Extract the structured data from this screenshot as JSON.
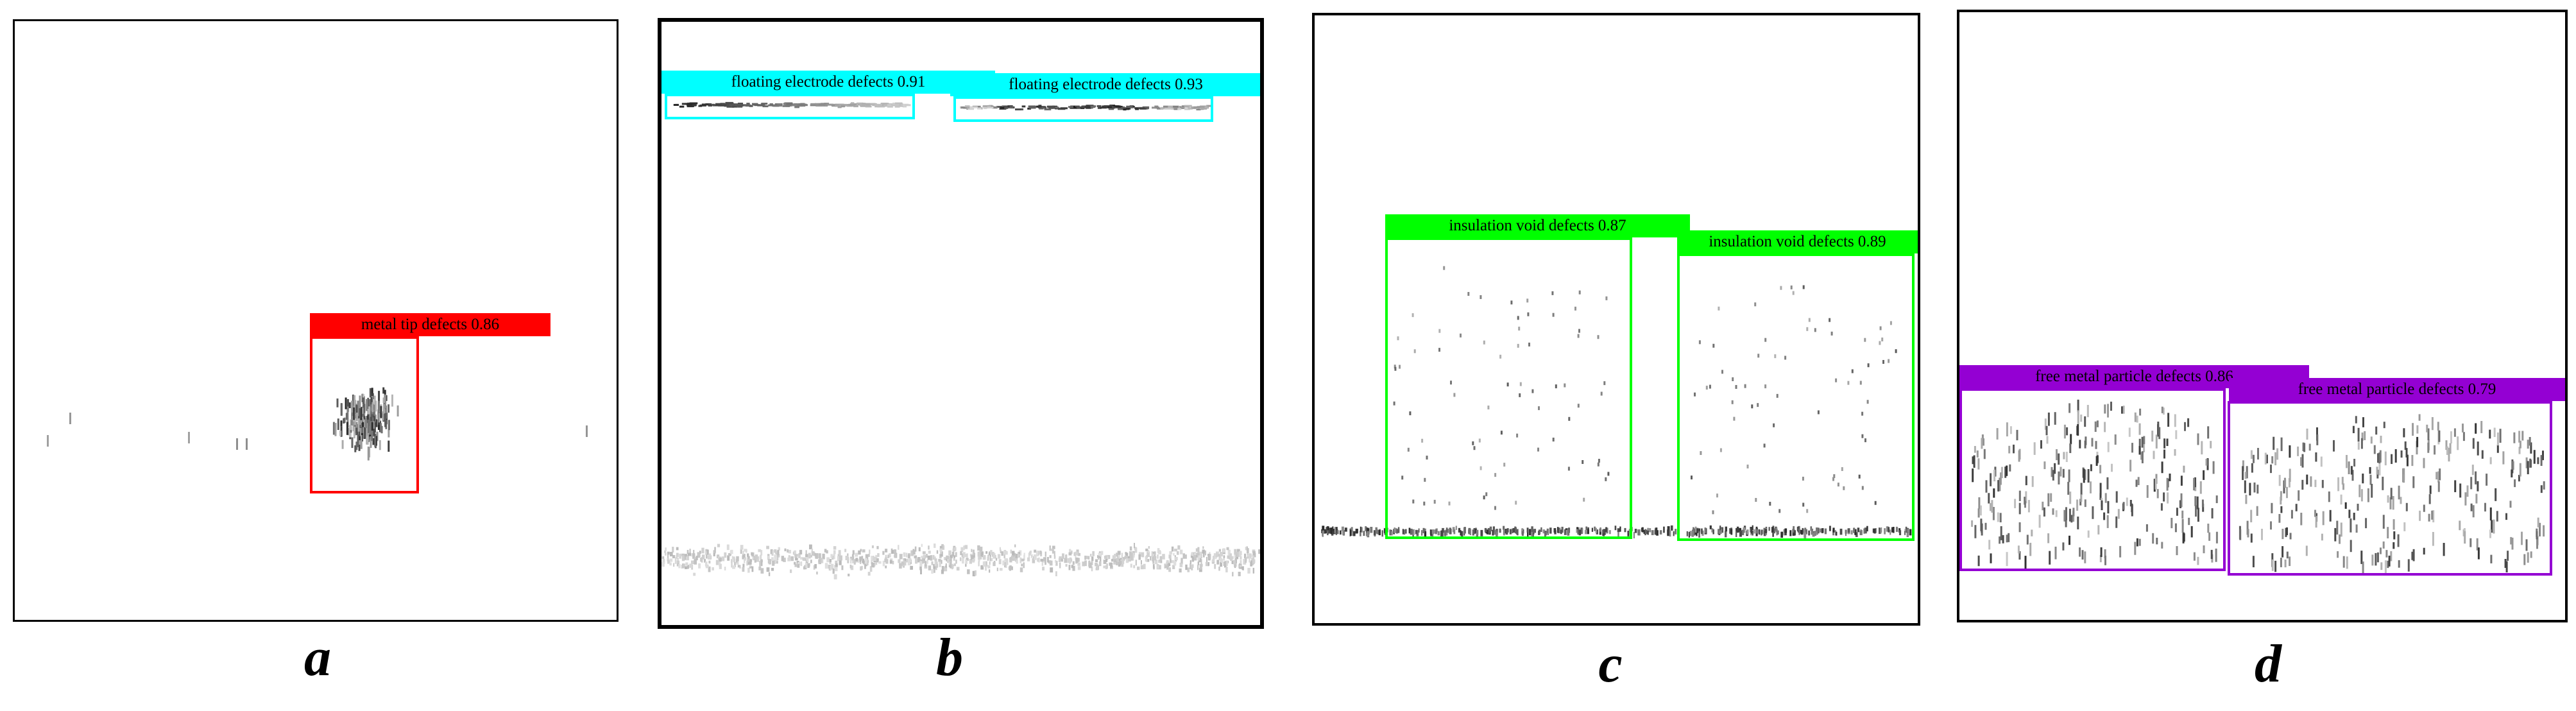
{
  "colors": {
    "metal_tip": "#ff0000",
    "floating_electrode": "#00ffff",
    "insulation_void": "#00ff00",
    "free_metal_particle": "#9400d3"
  },
  "panels": [
    {
      "id": "a",
      "caption": "a",
      "detections": [
        {
          "label": "metal tip defects 0.86",
          "class": "metal tip defects",
          "score": 0.86,
          "color": "#ff0000"
        }
      ]
    },
    {
      "id": "b",
      "caption": "b",
      "detections": [
        {
          "label": "floating electrode defects 0.91",
          "class": "floating electrode defects",
          "score": 0.91,
          "color": "#00ffff"
        },
        {
          "label": "floating electrode defects 0.93",
          "class": "floating electrode defects",
          "score": 0.93,
          "color": "#00ffff"
        }
      ]
    },
    {
      "id": "c",
      "caption": "c",
      "detections": [
        {
          "label": "insulation void defects 0.87",
          "class": "insulation void defects",
          "score": 0.87,
          "color": "#00ff00"
        },
        {
          "label": "insulation void defects 0.89",
          "class": "insulation void defects",
          "score": 0.89,
          "color": "#00ff00"
        }
      ]
    },
    {
      "id": "d",
      "caption": "d",
      "detections": [
        {
          "label": "free metal particle defects 0.86",
          "class": "free metal particle defects",
          "score": 0.86,
          "color": "#9400d3"
        },
        {
          "label": "free metal particle defects 0.79",
          "class": "free metal particle defects",
          "score": 0.79,
          "color": "#9400d3"
        }
      ]
    }
  ]
}
